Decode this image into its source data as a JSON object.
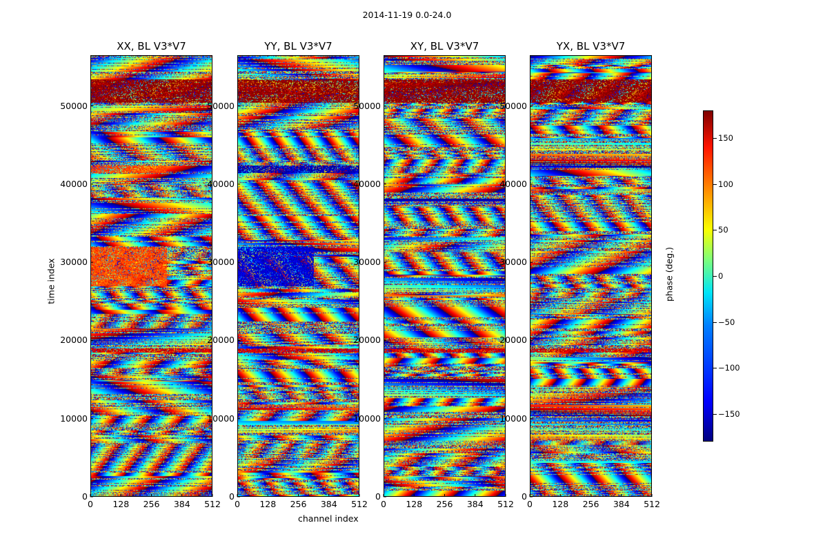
{
  "suptitle": "2014-11-19 0.0-24.0",
  "chart_data": {
    "type": "heatmap",
    "title": "2014-11-19 0.0-24.0",
    "xlabel": "channel index",
    "ylabel": "time index",
    "xlim": [
      0,
      512
    ],
    "ylim": [
      0,
      56500
    ],
    "x_ticks": [
      "0",
      "128",
      "256",
      "384",
      "512"
    ],
    "y_ticks": [
      "0",
      "10000",
      "20000",
      "30000",
      "40000",
      "50000"
    ],
    "panels": [
      {
        "title": "XX, BL V3*V7",
        "pol": "XX"
      },
      {
        "title": "YY, BL V3*V7",
        "pol": "YY"
      },
      {
        "title": "XY, BL V3*V7",
        "pol": "XY"
      },
      {
        "title": "YX, BL V3*V7",
        "pol": "YX"
      }
    ],
    "colorbar": {
      "label": "phase (deg.)",
      "range": [
        -180,
        180
      ],
      "ticks": [
        "150",
        "100",
        "50",
        "0",
        "−50",
        "−100",
        "−150"
      ],
      "colormap": "jet"
    },
    "features": [
      {
        "panels": [
          "XX"
        ],
        "channels": [
          0,
          320
        ],
        "time": [
          27000,
          32000
        ],
        "phase": 110
      },
      {
        "panels": [
          "YY"
        ],
        "channels": [
          0,
          320
        ],
        "time": [
          27000,
          32000
        ],
        "phase": -150
      },
      {
        "panels": [
          "XX"
        ],
        "channels": [
          0,
          320
        ],
        "time": [
          41500,
          42500
        ],
        "phase": 110
      },
      {
        "panels": [
          "YY"
        ],
        "channels": [
          0,
          512
        ],
        "time": [
          41500,
          42500
        ],
        "phase": -160
      },
      {
        "panels": [
          "XX",
          "YY",
          "XY",
          "YX"
        ],
        "channels": [
          0,
          512
        ],
        "time": [
          50500,
          53500
        ],
        "phase": 175
      },
      {
        "panels": [
          "XX",
          "YY",
          "XY",
          "YX"
        ],
        "channels": [
          0,
          512
        ],
        "time": [
          18500,
          19000
        ],
        "phase": 150
      }
    ]
  }
}
